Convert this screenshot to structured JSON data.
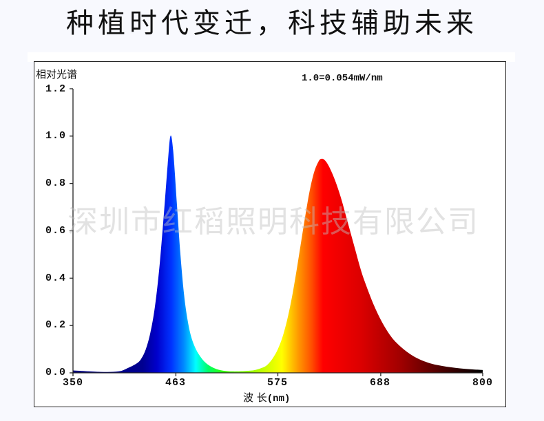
{
  "headline": "种植时代变迁，科技辅助未来",
  "watermark": "深圳市红稻照明科技有限公司",
  "chart_data": {
    "type": "area",
    "title": "",
    "ylabel": "相对光谱",
    "xlabel": "波 长",
    "xlabel_unit": "(nm)",
    "annotation": "1.0=0.054mW/nm",
    "xlim": [
      350,
      800
    ],
    "ylim": [
      0.0,
      1.2
    ],
    "grid": false,
    "legend": "none",
    "x_ticks": [
      "350",
      "463",
      "575",
      "688",
      "800"
    ],
    "y_ticks": [
      "1.2",
      "1.0",
      "0.8",
      "0.6",
      "0.4",
      "0.2",
      "0.0"
    ],
    "fill": "wavelength-colored gradient (blue → cyan → green → yellow → red → black)",
    "series": [
      {
        "name": "Relative spectrum",
        "x": [
          350,
          380,
          400,
          410,
          420,
          425,
          430,
          435,
          440,
          445,
          450,
          454,
          457,
          460,
          464,
          468,
          472,
          476,
          480,
          485,
          490,
          495,
          500,
          505,
          510,
          515,
          520,
          525,
          530,
          540,
          550,
          560,
          565,
          570,
          575,
          580,
          585,
          590,
          595,
          600,
          605,
          610,
          615,
          620,
          623,
          626,
          630,
          635,
          640,
          645,
          650,
          655,
          660,
          665,
          670,
          680,
          690,
          700,
          710,
          720,
          730,
          740,
          750,
          760,
          770,
          780,
          790,
          800
        ],
        "values": [
          0.01,
          0.004,
          0.006,
          0.02,
          0.04,
          0.06,
          0.1,
          0.17,
          0.28,
          0.45,
          0.68,
          0.88,
          1.0,
          0.94,
          0.72,
          0.5,
          0.33,
          0.22,
          0.15,
          0.1,
          0.068,
          0.045,
          0.03,
          0.02,
          0.013,
          0.009,
          0.007,
          0.006,
          0.006,
          0.008,
          0.012,
          0.025,
          0.04,
          0.065,
          0.1,
          0.15,
          0.22,
          0.31,
          0.42,
          0.54,
          0.66,
          0.77,
          0.85,
          0.895,
          0.904,
          0.9,
          0.88,
          0.84,
          0.79,
          0.73,
          0.66,
          0.59,
          0.52,
          0.45,
          0.39,
          0.29,
          0.21,
          0.15,
          0.11,
          0.08,
          0.058,
          0.043,
          0.033,
          0.026,
          0.021,
          0.017,
          0.014,
          0.012
        ]
      }
    ],
    "peaks": [
      {
        "wavelength_nm": 457,
        "value": 1.0,
        "color": "blue"
      },
      {
        "wavelength_nm": 623,
        "value": 0.904,
        "color": "red"
      }
    ]
  }
}
